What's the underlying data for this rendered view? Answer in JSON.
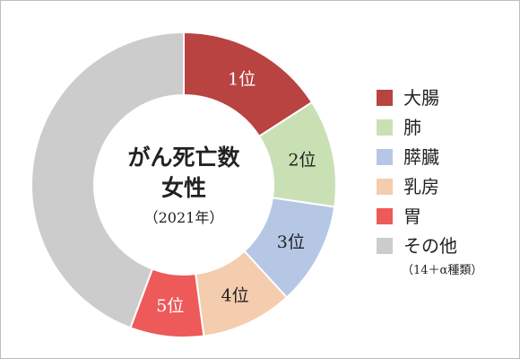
{
  "chart_data": {
    "type": "pie",
    "categories": [
      "大腸",
      "肺",
      "膵臓",
      "乳房",
      "胃",
      "その他"
    ],
    "values": [
      15.9,
      11.4,
      10.9,
      9.7,
      7.8,
      44.3
    ],
    "rank_labels": [
      "1位",
      "2位",
      "3位",
      "4位",
      "5位",
      ""
    ],
    "colors": [
      "#b84341",
      "#c9e0b4",
      "#b6c7e6",
      "#f4ccae",
      "#ee5959",
      "#cccccc"
    ],
    "center_title_lines": [
      "がん死亡数",
      "女性"
    ],
    "center_subtitle": "（2021年）",
    "legend_note": "（14＋α種類）",
    "legend_placement": "right"
  }
}
